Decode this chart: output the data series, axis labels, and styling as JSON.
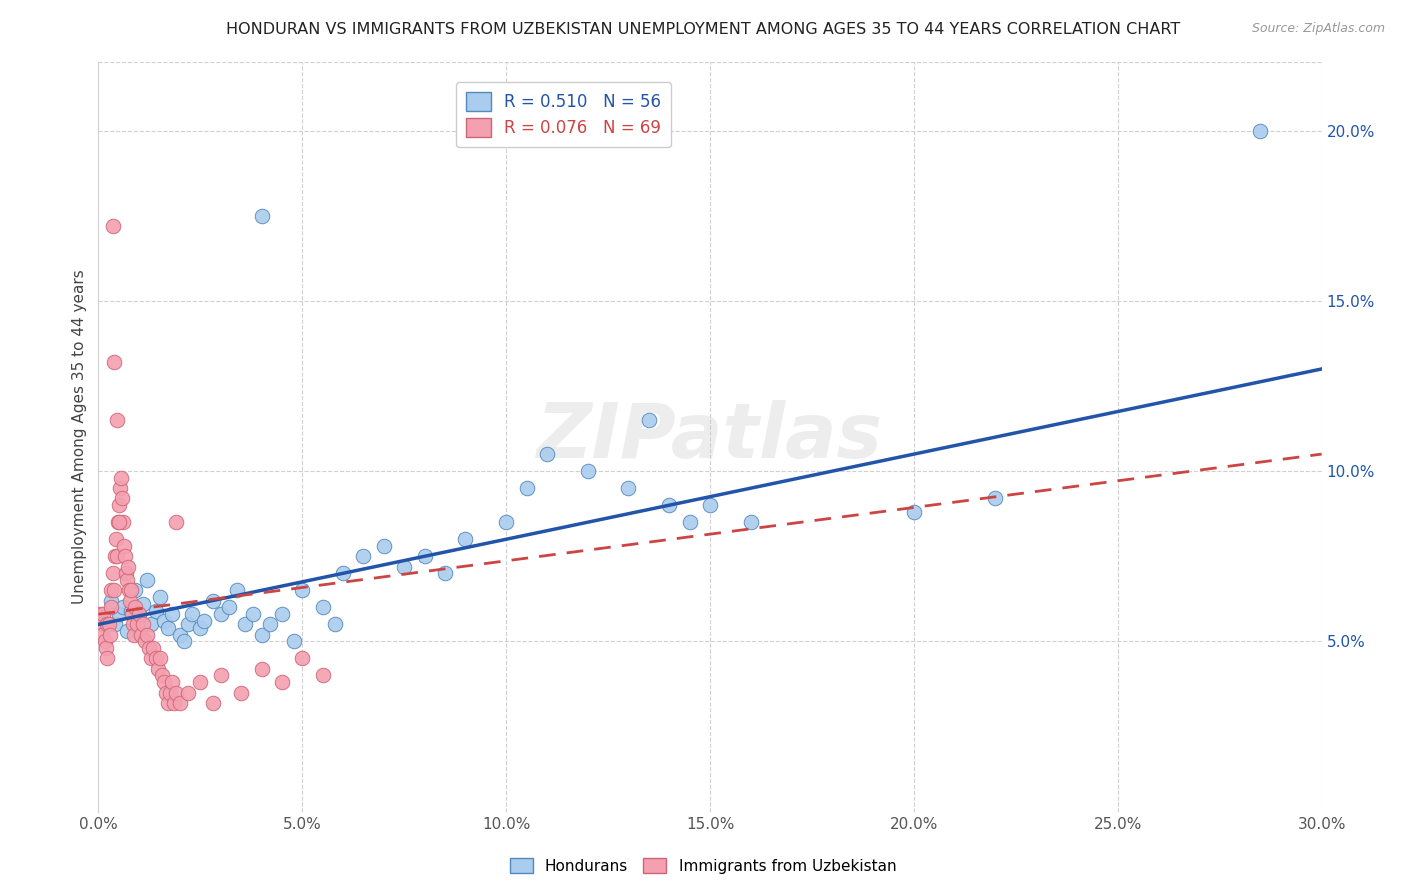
{
  "title": "HONDURAN VS IMMIGRANTS FROM UZBEKISTAN UNEMPLOYMENT AMONG AGES 35 TO 44 YEARS CORRELATION CHART",
  "source": "Source: ZipAtlas.com",
  "ylabel": "Unemployment Among Ages 35 to 44 years",
  "xlabel_vals": [
    0.0,
    5.0,
    10.0,
    15.0,
    20.0,
    25.0,
    30.0
  ],
  "ylabel_vals_right": [
    5.0,
    10.0,
    15.0,
    20.0
  ],
  "xlim": [
    0,
    30
  ],
  "ylim": [
    0,
    22
  ],
  "blue_R": 0.51,
  "blue_N": 56,
  "pink_R": 0.076,
  "pink_N": 69,
  "legend_label_blue": "Hondurans",
  "legend_label_pink": "Immigrants from Uzbekistan",
  "watermark": "ZIPatlas",
  "blue_color": "#aaccee",
  "pink_color": "#f4a0b0",
  "blue_edge_color": "#5588bb",
  "pink_edge_color": "#cc6677",
  "blue_line_color": "#2255aa",
  "pink_line_color": "#cc4444",
  "blue_scatter": [
    [
      0.3,
      6.2
    ],
    [
      0.4,
      5.5
    ],
    [
      0.5,
      5.8
    ],
    [
      0.6,
      6.0
    ],
    [
      0.7,
      5.3
    ],
    [
      0.8,
      5.9
    ],
    [
      0.9,
      6.5
    ],
    [
      1.0,
      5.8
    ],
    [
      1.1,
      6.1
    ],
    [
      1.2,
      6.8
    ],
    [
      1.3,
      5.5
    ],
    [
      1.4,
      5.9
    ],
    [
      1.5,
      6.3
    ],
    [
      1.6,
      5.6
    ],
    [
      1.7,
      5.4
    ],
    [
      1.8,
      5.8
    ],
    [
      2.0,
      5.2
    ],
    [
      2.1,
      5.0
    ],
    [
      2.2,
      5.5
    ],
    [
      2.3,
      5.8
    ],
    [
      2.5,
      5.4
    ],
    [
      2.6,
      5.6
    ],
    [
      2.8,
      6.2
    ],
    [
      3.0,
      5.8
    ],
    [
      3.2,
      6.0
    ],
    [
      3.4,
      6.5
    ],
    [
      3.6,
      5.5
    ],
    [
      3.8,
      5.8
    ],
    [
      4.0,
      5.2
    ],
    [
      4.2,
      5.5
    ],
    [
      4.5,
      5.8
    ],
    [
      4.8,
      5.0
    ],
    [
      5.0,
      6.5
    ],
    [
      5.5,
      6.0
    ],
    [
      5.8,
      5.5
    ],
    [
      6.0,
      7.0
    ],
    [
      6.5,
      7.5
    ],
    [
      7.0,
      7.8
    ],
    [
      7.5,
      7.2
    ],
    [
      8.0,
      7.5
    ],
    [
      8.5,
      7.0
    ],
    [
      9.0,
      8.0
    ],
    [
      10.0,
      8.5
    ],
    [
      10.5,
      9.5
    ],
    [
      11.0,
      10.5
    ],
    [
      12.0,
      10.0
    ],
    [
      13.0,
      9.5
    ],
    [
      13.5,
      11.5
    ],
    [
      14.0,
      9.0
    ],
    [
      14.5,
      8.5
    ],
    [
      15.0,
      9.0
    ],
    [
      16.0,
      8.5
    ],
    [
      20.0,
      8.8
    ],
    [
      22.0,
      9.2
    ],
    [
      28.5,
      20.0
    ],
    [
      4.0,
      17.5
    ]
  ],
  "pink_scatter": [
    [
      0.05,
      5.8
    ],
    [
      0.08,
      5.5
    ],
    [
      0.1,
      5.2
    ],
    [
      0.12,
      5.8
    ],
    [
      0.15,
      5.0
    ],
    [
      0.18,
      4.8
    ],
    [
      0.2,
      5.5
    ],
    [
      0.22,
      4.5
    ],
    [
      0.25,
      5.5
    ],
    [
      0.28,
      5.2
    ],
    [
      0.3,
      6.5
    ],
    [
      0.32,
      6.0
    ],
    [
      0.35,
      7.0
    ],
    [
      0.38,
      6.5
    ],
    [
      0.4,
      7.5
    ],
    [
      0.42,
      8.0
    ],
    [
      0.45,
      7.5
    ],
    [
      0.48,
      8.5
    ],
    [
      0.5,
      9.0
    ],
    [
      0.52,
      9.5
    ],
    [
      0.55,
      9.8
    ],
    [
      0.58,
      9.2
    ],
    [
      0.6,
      8.5
    ],
    [
      0.62,
      7.8
    ],
    [
      0.65,
      7.5
    ],
    [
      0.68,
      7.0
    ],
    [
      0.7,
      6.8
    ],
    [
      0.72,
      7.2
    ],
    [
      0.75,
      6.5
    ],
    [
      0.78,
      6.2
    ],
    [
      0.8,
      6.5
    ],
    [
      0.82,
      5.8
    ],
    [
      0.85,
      5.5
    ],
    [
      0.88,
      5.2
    ],
    [
      0.9,
      6.0
    ],
    [
      0.95,
      5.5
    ],
    [
      1.0,
      5.8
    ],
    [
      1.05,
      5.2
    ],
    [
      1.1,
      5.5
    ],
    [
      1.15,
      5.0
    ],
    [
      1.2,
      5.2
    ],
    [
      1.25,
      4.8
    ],
    [
      1.3,
      4.5
    ],
    [
      1.35,
      4.8
    ],
    [
      1.4,
      4.5
    ],
    [
      1.45,
      4.2
    ],
    [
      1.5,
      4.5
    ],
    [
      1.55,
      4.0
    ],
    [
      1.6,
      3.8
    ],
    [
      1.65,
      3.5
    ],
    [
      1.7,
      3.2
    ],
    [
      1.75,
      3.5
    ],
    [
      1.8,
      3.8
    ],
    [
      1.85,
      3.2
    ],
    [
      1.9,
      3.5
    ],
    [
      2.0,
      3.2
    ],
    [
      2.2,
      3.5
    ],
    [
      2.5,
      3.8
    ],
    [
      2.8,
      3.2
    ],
    [
      3.0,
      4.0
    ],
    [
      3.5,
      3.5
    ],
    [
      4.0,
      4.2
    ],
    [
      4.5,
      3.8
    ],
    [
      5.0,
      4.5
    ],
    [
      5.5,
      4.0
    ],
    [
      0.35,
      17.2
    ],
    [
      0.38,
      13.2
    ],
    [
      0.45,
      11.5
    ],
    [
      0.5,
      8.5
    ],
    [
      1.9,
      8.5
    ]
  ]
}
